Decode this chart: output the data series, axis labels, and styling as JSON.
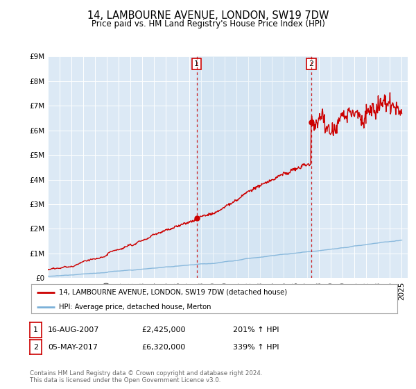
{
  "title": "14, LAMBOURNE AVENUE, LONDON, SW19 7DW",
  "subtitle": "Price paid vs. HM Land Registry's House Price Index (HPI)",
  "sale1_year": 2007.62,
  "sale1_price": 2425000,
  "sale2_year": 2017.34,
  "sale2_price": 6320000,
  "hpi_color": "#7ab0d8",
  "price_color": "#cc0000",
  "background_color": "#ffffff",
  "plot_bg_color": "#dce9f5",
  "grid_color": "#ffffff",
  "legend_label_price": "14, LAMBOURNE AVENUE, LONDON, SW19 7DW (detached house)",
  "legend_label_hpi": "HPI: Average price, detached house, Merton",
  "footer1": "Contains HM Land Registry data © Crown copyright and database right 2024.",
  "footer2": "This data is licensed under the Open Government Licence v3.0.",
  "ylim_max": 9000000,
  "note1_text": "16-AUG-2007",
  "note1_price": "£2,425,000",
  "note1_pct": "201% ↑ HPI",
  "note2_text": "05-MAY-2017",
  "note2_price": "£6,320,000",
  "note2_pct": "339% ↑ HPI"
}
